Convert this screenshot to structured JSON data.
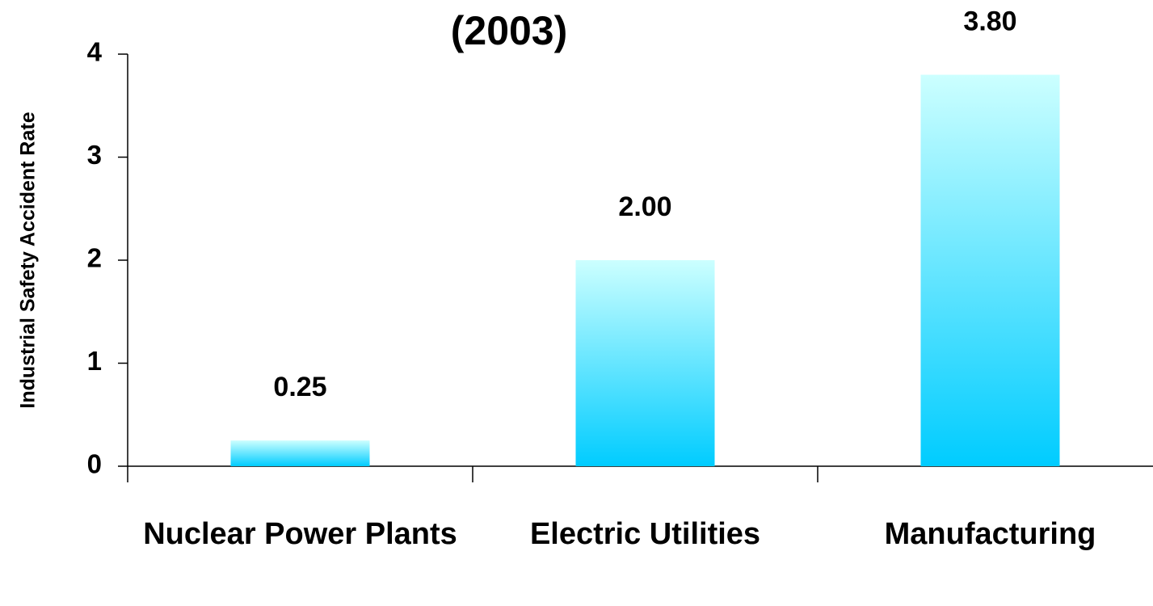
{
  "chart_data": {
    "type": "bar",
    "title": "(2003)",
    "y_label": "Industrial Safety Accident Rate",
    "categories": [
      "Nuclear Power Plants",
      "Electric Utilities",
      "Manufacturing"
    ],
    "values": [
      0.25,
      2.0,
      3.8
    ],
    "value_labels": [
      "0.25",
      "2.00",
      "3.80"
    ],
    "ylim": [
      0,
      4
    ],
    "yticks": [
      0,
      1,
      2,
      3,
      4
    ],
    "grid": false,
    "color_top": "#ccffff",
    "color_bottom": "#00ccff"
  }
}
